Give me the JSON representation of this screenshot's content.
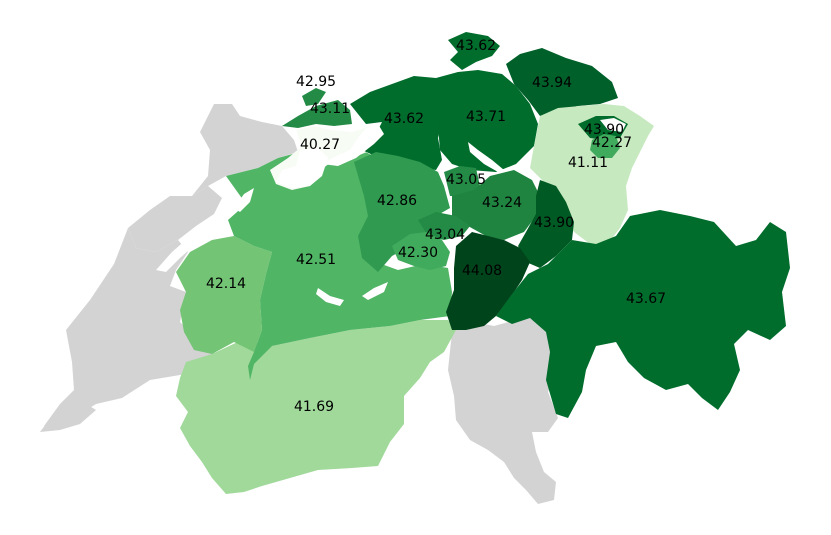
{
  "map": {
    "colors": {
      "no_data": "#d3d3d3",
      "lakes": "#ffffff",
      "scale": [
        "#f7fcf5",
        "#c7e9c0",
        "#a1d99b",
        "#74c476",
        "#41ab5d",
        "#238b45",
        "#006d2c",
        "#00441b"
      ]
    },
    "regions": [
      {
        "id": "basel-stadt",
        "value": 42.95,
        "label": "42.95",
        "color": "#238b45"
      },
      {
        "id": "basel-landschaft",
        "value": 43.11,
        "label": "43.11",
        "color": "#238b45"
      },
      {
        "id": "solothurn",
        "value": 40.27,
        "label": "40.27",
        "color": "#f7fcf5"
      },
      {
        "id": "aargau",
        "value": 43.62,
        "label": "43.62",
        "color": "#006d2c"
      },
      {
        "id": "schaffhausen",
        "value": 43.62,
        "label": "43.62",
        "color": "#006d2c"
      },
      {
        "id": "zurich",
        "value": 43.71,
        "label": "43.71",
        "color": "#006d2c"
      },
      {
        "id": "thurgau",
        "value": 43.94,
        "label": "43.94",
        "color": "#00602a"
      },
      {
        "id": "appenzell-ar",
        "value": 43.9,
        "label": "43.90",
        "color": "#006d2c"
      },
      {
        "id": "appenzell-ir",
        "value": 42.27,
        "label": "42.27",
        "color": "#41ab5d"
      },
      {
        "id": "st-gallen",
        "value": 41.11,
        "label": "41.11",
        "color": "#c7e9c0"
      },
      {
        "id": "zug",
        "value": 43.05,
        "label": "43.05",
        "color": "#238b45"
      },
      {
        "id": "luzern",
        "value": 42.86,
        "label": "42.86",
        "color": "#2f9a50"
      },
      {
        "id": "schwyz",
        "value": 43.24,
        "label": "43.24",
        "color": "#1f8440"
      },
      {
        "id": "glarus",
        "value": 43.9,
        "label": "43.90",
        "color": "#005a24"
      },
      {
        "id": "nidwalden",
        "value": 43.04,
        "label": "43.04",
        "color": "#238b45"
      },
      {
        "id": "obwalden",
        "value": 42.3,
        "label": "42.30",
        "color": "#41ab5d"
      },
      {
        "id": "uri",
        "value": 44.08,
        "label": "44.08",
        "color": "#00441b"
      },
      {
        "id": "graubunden",
        "value": 43.67,
        "label": "43.67",
        "color": "#006d2c"
      },
      {
        "id": "bern",
        "value": 42.51,
        "label": "42.51",
        "color": "#50b565"
      },
      {
        "id": "fribourg",
        "value": 42.14,
        "label": "42.14",
        "color": "#74c476"
      },
      {
        "id": "valais",
        "value": 41.69,
        "label": "41.69",
        "color": "#a1d99b"
      }
    ]
  }
}
